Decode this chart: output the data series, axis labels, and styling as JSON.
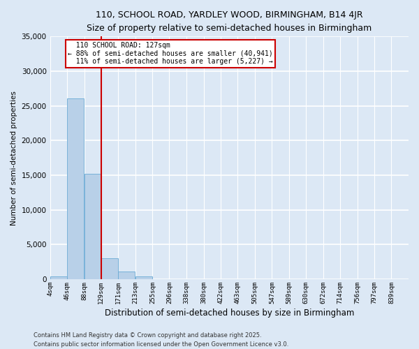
{
  "title": "110, SCHOOL ROAD, YARDLEY WOOD, BIRMINGHAM, B14 4JR",
  "subtitle": "Size of property relative to semi-detached houses in Birmingham",
  "xlabel": "Distribution of semi-detached houses by size in Birmingham",
  "ylabel": "Number of semi-detached properties",
  "bar_color": "#b8d0e8",
  "bar_edgecolor": "#6aaad4",
  "background_color": "#dce8f5",
  "fig_background_color": "#dce8f5",
  "grid_color": "#ffffff",
  "annotation_box_color": "#cc0000",
  "vline_color": "#cc0000",
  "property_label": "110 SCHOOL ROAD: 127sqm",
  "smaller_pct": "88%",
  "smaller_count": "40,941",
  "larger_pct": "11%",
  "larger_count": "5,227",
  "categories": [
    "4sqm",
    "46sqm",
    "88sqm",
    "129sqm",
    "171sqm",
    "213sqm",
    "255sqm",
    "296sqm",
    "338sqm",
    "380sqm",
    "422sqm",
    "463sqm",
    "505sqm",
    "547sqm",
    "589sqm",
    "630sqm",
    "672sqm",
    "714sqm",
    "756sqm",
    "797sqm",
    "839sqm"
  ],
  "values": [
    400,
    26100,
    15200,
    3000,
    1100,
    450,
    50,
    0,
    0,
    0,
    0,
    0,
    0,
    0,
    0,
    0,
    0,
    0,
    0,
    0,
    0
  ],
  "bin_edges": [
    4,
    46,
    88,
    129,
    171,
    213,
    255,
    296,
    338,
    380,
    422,
    463,
    505,
    547,
    589,
    630,
    672,
    714,
    756,
    797,
    839
  ],
  "ylim": [
    0,
    35000
  ],
  "yticks": [
    0,
    5000,
    10000,
    15000,
    20000,
    25000,
    30000,
    35000
  ],
  "footnote1": "Contains HM Land Registry data © Crown copyright and database right 2025.",
  "footnote2": "Contains public sector information licensed under the Open Government Licence v3.0."
}
